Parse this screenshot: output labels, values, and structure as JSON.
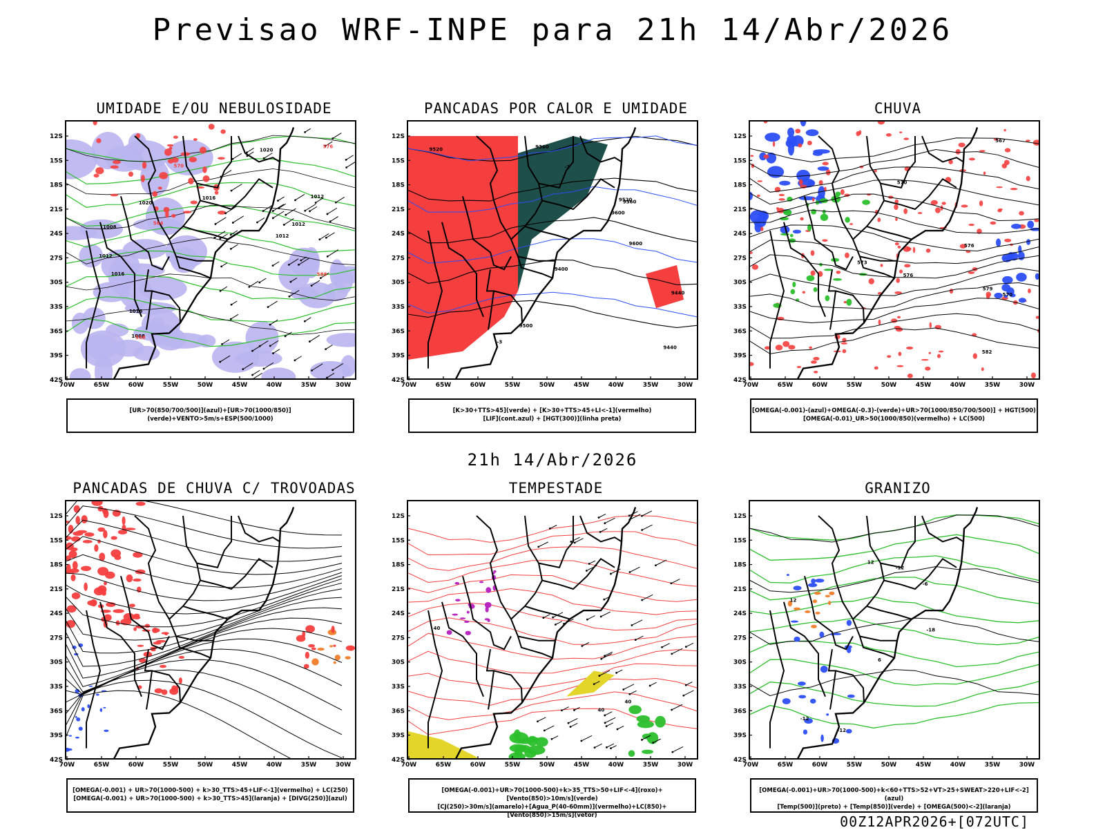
{
  "header": {
    "title": "Previsao WRF-INPE  para 21h 14/Abr/2026"
  },
  "separator": {
    "time_label": "21h 14/Abr/2026"
  },
  "footer": {
    "run_label": "00Z12APR2026+[072UTC]"
  },
  "axes": {
    "x_ticks": [
      "70W",
      "65W",
      "60W",
      "55W",
      "50W",
      "45W",
      "40W",
      "35W",
      "30W"
    ],
    "y_ticks": [
      "12S",
      "15S",
      "18S",
      "21S",
      "24S",
      "27S",
      "30S",
      "33S",
      "36S",
      "39S",
      "42S"
    ]
  },
  "colors": {
    "red": "#f53e3e",
    "green": "#2bbf2b",
    "blue": "#2b4ef5",
    "lavender": "#b9b5f0",
    "darkteal": "#1f4f4a",
    "yellow": "#e3d52a",
    "purple": "#b41ebe",
    "orange": "#f07d2a"
  },
  "panels": [
    {
      "title": "UMIDADE E/OU NEBULOSIDADE",
      "legend_lines": [
        "[UR>70(850/700/500)](azul)+[UR>70(1000/850)](verde)+VENTO>5m/s+ESP(500/1000)"
      ],
      "contour_labels": [
        "1008",
        "1008",
        "1012",
        "1012",
        "1012",
        "1016",
        "1016",
        "1016",
        "1020",
        "1020",
        "1012",
        "576",
        "570",
        "564",
        "558",
        "588"
      ]
    },
    {
      "title": "PANCADAS POR CALOR E UMIDADE",
      "legend_lines": [
        "[K>30+TTS>45](verde) + [K>30+TTS>45+LI<-1](vermelho)",
        "[LIF](cont.azul) + [HGT(300)](linha preta)"
      ],
      "contour_labels": [
        "9500",
        "9600",
        "9520",
        "9600",
        "9400",
        "9440",
        "9360",
        "9440",
        "9520",
        "9360",
        "-3",
        "-3"
      ]
    },
    {
      "title": "CHUVA",
      "legend_lines": [
        "[OMEGA(-0.001)-(azul)+OMEGA(-0.3)-(verde)+UR>70(1000/850/700/500)] + HGT(500)",
        "[OMEGA(-0.01)_UR>50(1000/850)(vermelho) + LC(500)"
      ],
      "contour_labels": [
        "576",
        "570",
        "582",
        "576",
        "570",
        "567",
        "573",
        "579"
      ]
    },
    {
      "title": "PANCADAS DE CHUVA C/ TROVOADAS",
      "legend_lines": [
        "[OMEGA(-0.001) + UR>70(1000-500) + k>30_TTS>45+LIF<-1](vermelho) + LC(250)",
        "[OMEGA(-0.001) + UR>70(1000-500) + k>30_TTS>45](laranja) + [DIVG(250)](azul)"
      ],
      "contour_labels": []
    },
    {
      "title": "TEMPESTADE",
      "legend_lines": [
        "[OMEGA(-0.001)+UR>70(1000-500)+k>35_TTS>50+LIF<-4](roxo)+[Vento(850)>10m/s](verde)",
        "[CJ(250)>30m/s](amarelo)+[Agua_P(40-60mm)](vermelho)+LC(850)+[Vento(850)>15m/s](vetor)"
      ],
      "contour_labels": [
        "40",
        "40",
        "40"
      ]
    },
    {
      "title": "GRANIZO",
      "legend_lines": [
        "[OMEGA(-0.001)+UR>70(1000-500)+k<60+TTS>52+VT>25+SWEAT>220+LIF<-2](azul)",
        "[Temp(500)](preto) + [Temp(850)](verde) + [OMEGA(500)<-2](laranja)"
      ],
      "contour_labels": [
        "-6",
        "-12",
        "-12",
        "-18",
        "-12",
        "12",
        "12",
        "6"
      ]
    }
  ]
}
